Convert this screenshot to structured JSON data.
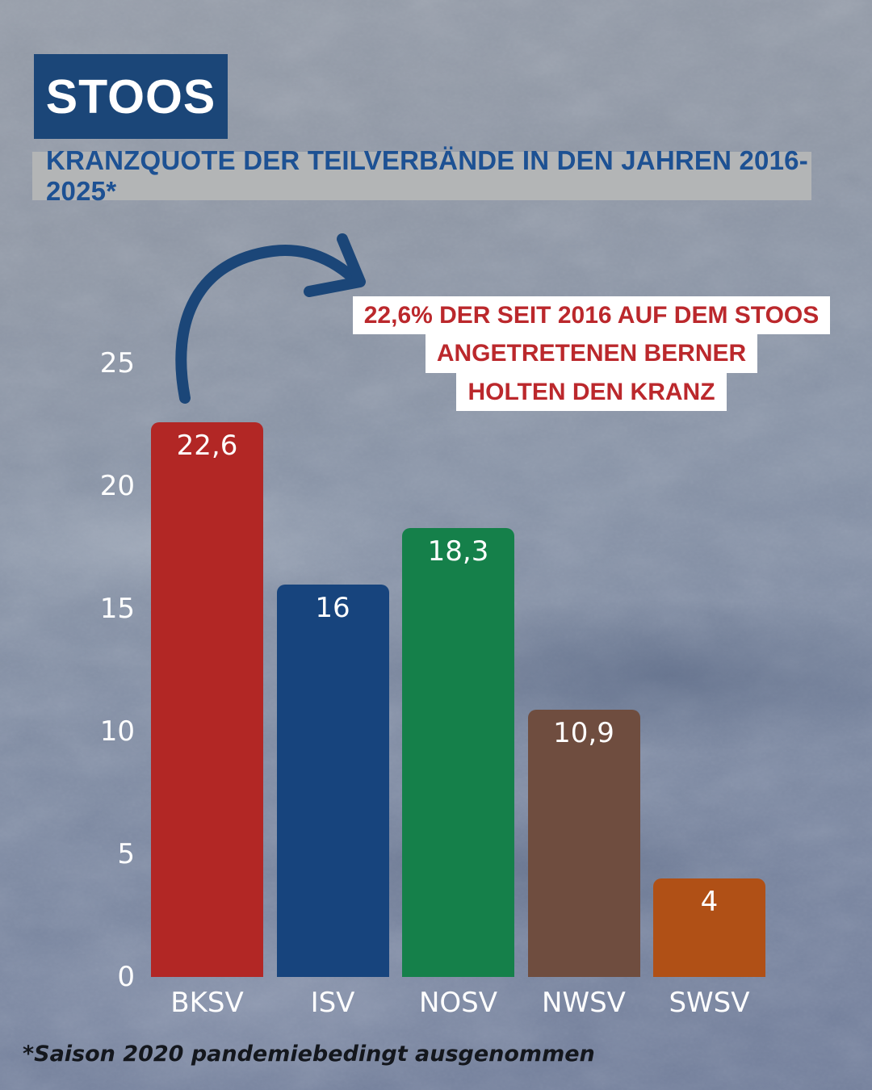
{
  "header": {
    "logo": "STOOS",
    "subtitle": "KRANZQUOTE DER TEILVERBÄNDE IN DEN JAHREN 2016-2025*"
  },
  "annotation": {
    "lines": [
      "22,6% DER SEIT 2016 AUF DEM STOOS",
      "ANGETRETENEN BERNER",
      "HOLTEN DEN KRANZ"
    ]
  },
  "footnote": "*Saison 2020 pandemiebedingt ausgenommen",
  "chart_data": {
    "type": "bar",
    "title": "KRANZQUOTE DER TEILVERBÄNDE IN DEN JAHREN 2016-2025*",
    "categories": [
      "BKSV",
      "ISV",
      "NOSV",
      "NWSV",
      "SWSV"
    ],
    "values": [
      22.6,
      16,
      18.3,
      10.9,
      4
    ],
    "value_labels": [
      "22,6",
      "16",
      "18,3",
      "10,9",
      "4"
    ],
    "bar_colors": [
      "#b22725",
      "#17447d",
      "#15804a",
      "#6f4d3f",
      "#b05016"
    ],
    "yticks": [
      0,
      5,
      10,
      15,
      20,
      25
    ],
    "ylim": [
      0,
      25
    ],
    "xlabel": "",
    "ylabel": "",
    "grid": false,
    "legend": "none"
  },
  "colors": {
    "logo_bg": "#1b4678",
    "logo_text": "#ffffff",
    "subtitle_bg": "#b3b5b6",
    "subtitle_text": "#1d5193",
    "annotation_text": "#bb282c",
    "annotation_bg": "#ffffff",
    "arrow": "#1b4678",
    "axis_text": "#ffffff",
    "footnote_text": "#14171d"
  }
}
